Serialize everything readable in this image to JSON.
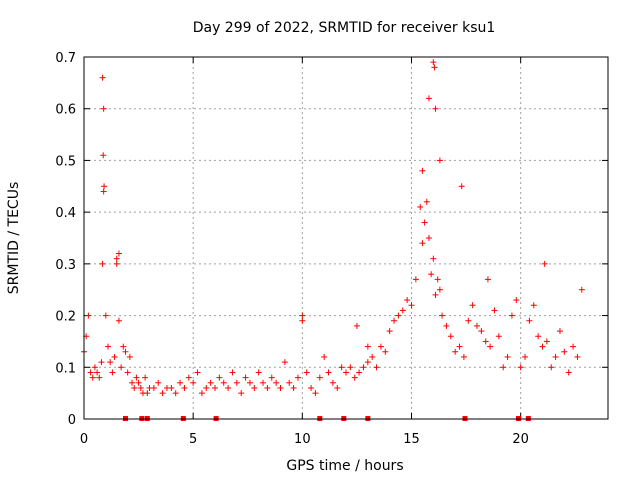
{
  "chart_data": {
    "type": "scatter",
    "title": "Day 299 of 2022, SRMTID for receiver ksu1",
    "xlabel": "GPS time / hours",
    "ylabel": "SRMTID / TECUs",
    "xlim": [
      0,
      24
    ],
    "ylim": [
      0,
      0.7
    ],
    "xticks": [
      0,
      5,
      10,
      15,
      20
    ],
    "yticks": [
      0,
      0.1,
      0.2,
      0.3,
      0.4,
      0.5,
      0.6,
      0.7
    ],
    "ytick_labels": [
      "0",
      "0.1",
      "0.2",
      "0.3",
      "0.4",
      "0.5",
      "0.6",
      "0.7"
    ],
    "grid": true,
    "marker": "+",
    "color": "#ff0000",
    "series": [
      {
        "name": "SRMTID",
        "x": [
          0.0,
          0.1,
          0.2,
          0.3,
          0.4,
          0.5,
          0.6,
          0.7,
          0.8,
          0.85,
          0.9,
          1.0,
          1.1,
          1.2,
          1.3,
          1.4,
          1.5,
          1.6,
          1.7,
          1.8,
          1.9,
          2.0,
          2.1,
          2.2,
          2.3,
          2.4,
          2.5,
          2.6,
          2.7,
          2.8,
          2.9,
          3.0,
          3.2,
          3.4,
          3.6,
          3.8,
          4.0,
          4.2,
          4.4,
          4.6,
          4.8,
          5.0,
          5.2,
          5.4,
          5.6,
          5.8,
          6.0,
          6.2,
          6.4,
          6.6,
          6.8,
          7.0,
          7.2,
          7.4,
          7.6,
          7.8,
          8.0,
          8.2,
          8.4,
          8.6,
          8.8,
          9.0,
          9.2,
          9.4,
          9.6,
          9.8,
          10.0,
          10.2,
          10.4,
          10.6,
          10.8,
          11.0,
          11.2,
          11.4,
          11.6,
          11.8,
          12.0,
          12.2,
          12.4,
          12.6,
          12.8,
          13.0,
          13.2,
          13.4,
          13.6,
          13.8,
          14.0,
          14.2,
          14.4,
          14.6,
          14.8,
          15.0,
          15.2,
          15.4,
          15.5,
          15.6,
          15.7,
          15.8,
          15.9,
          16.0,
          16.1,
          16.2,
          16.3,
          16.4,
          16.6,
          16.8,
          17.0,
          17.2,
          17.4,
          17.6,
          17.8,
          18.0,
          18.2,
          18.4,
          18.6,
          18.8,
          19.0,
          19.2,
          19.4,
          19.6,
          19.8,
          20.0,
          20.2,
          20.4,
          20.6,
          20.8,
          21.0,
          21.2,
          21.4,
          21.6,
          21.8,
          22.0,
          22.2,
          22.4,
          22.6,
          22.8,
          0.85,
          0.9,
          0.88,
          0.92,
          1.5,
          1.6,
          15.5,
          15.8,
          16.0,
          16.05,
          16.1,
          16.3,
          17.3,
          10.0,
          12.5,
          13.0,
          18.5,
          21.1
        ],
        "y": [
          0.13,
          0.16,
          0.2,
          0.09,
          0.08,
          0.1,
          0.09,
          0.08,
          0.11,
          0.3,
          0.44,
          0.2,
          0.14,
          0.11,
          0.09,
          0.12,
          0.31,
          0.19,
          0.1,
          0.14,
          0.13,
          0.09,
          0.12,
          0.07,
          0.06,
          0.08,
          0.07,
          0.06,
          0.05,
          0.08,
          0.05,
          0.06,
          0.06,
          0.07,
          0.05,
          0.06,
          0.06,
          0.05,
          0.07,
          0.06,
          0.08,
          0.07,
          0.09,
          0.05,
          0.06,
          0.07,
          0.06,
          0.08,
          0.07,
          0.06,
          0.09,
          0.07,
          0.05,
          0.08,
          0.07,
          0.06,
          0.09,
          0.07,
          0.06,
          0.08,
          0.07,
          0.06,
          0.11,
          0.07,
          0.06,
          0.08,
          0.2,
          0.09,
          0.06,
          0.05,
          0.08,
          0.12,
          0.09,
          0.07,
          0.06,
          0.1,
          0.09,
          0.1,
          0.08,
          0.09,
          0.1,
          0.11,
          0.12,
          0.1,
          0.14,
          0.13,
          0.17,
          0.19,
          0.2,
          0.21,
          0.23,
          0.22,
          0.27,
          0.41,
          0.34,
          0.38,
          0.42,
          0.35,
          0.28,
          0.31,
          0.24,
          0.27,
          0.25,
          0.2,
          0.18,
          0.16,
          0.13,
          0.14,
          0.12,
          0.19,
          0.22,
          0.18,
          0.17,
          0.15,
          0.14,
          0.21,
          0.16,
          0.1,
          0.12,
          0.2,
          0.23,
          0.1,
          0.12,
          0.19,
          0.22,
          0.16,
          0.14,
          0.15,
          0.1,
          0.12,
          0.17,
          0.13,
          0.09,
          0.14,
          0.12,
          0.25,
          0.66,
          0.6,
          0.51,
          0.45,
          0.3,
          0.32,
          0.48,
          0.62,
          0.69,
          0.68,
          0.6,
          0.5,
          0.45,
          0.19,
          0.18,
          0.14,
          0.27,
          0.3
        ]
      }
    ],
    "gap_markers_x": [
      1.9,
      2.65,
      2.9,
      4.55,
      6.05,
      10.8,
      11.9,
      13.0,
      17.45,
      19.9,
      20.35
    ]
  }
}
